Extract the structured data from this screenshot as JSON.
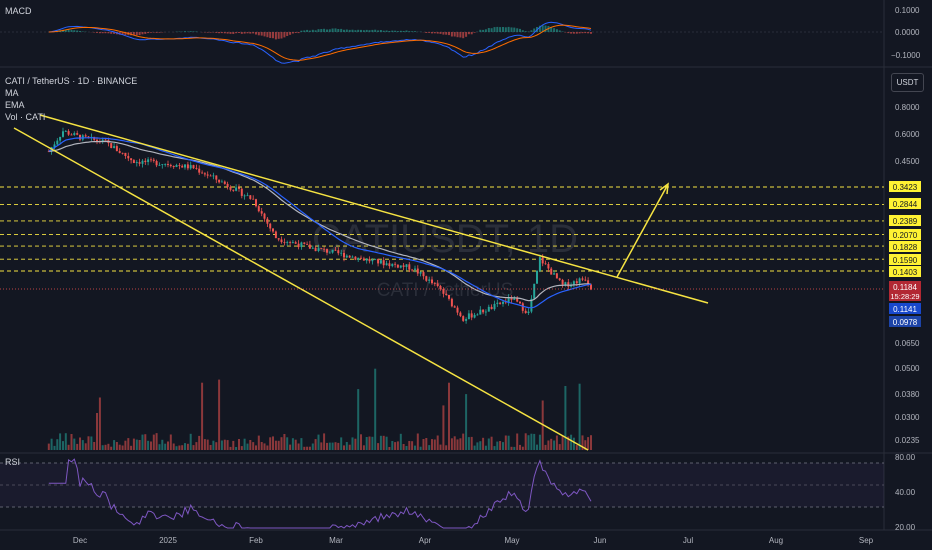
{
  "symbol": {
    "title": "CATI / TetherUS · 1D · BINANCE",
    "watermark_ticker": "CATIUSDT, 1D",
    "watermark_name": "CATI / TetherUS"
  },
  "indicators": {
    "macd_label": "MACD",
    "ma_label": "MA",
    "ema_label": "EMA",
    "vol_label": "Vol · CATI",
    "rsi_label": "RSI"
  },
  "price_axis": {
    "unit": "USDT",
    "ticks": [
      "0.8000",
      "0.6000",
      "0.4500",
      "0.0650",
      "0.0500",
      "0.0380",
      "0.0300",
      "0.0235"
    ]
  },
  "macd_axis": {
    "ticks": [
      "0.1000",
      "0.0000",
      "−0.1000"
    ]
  },
  "rsi_axis": {
    "ticks": [
      "80.00",
      "40.00",
      "20.00"
    ]
  },
  "time_axis": {
    "ticks": [
      "Dec",
      "2025",
      "Feb",
      "Mar",
      "Apr",
      "May",
      "Jun",
      "Jul",
      "Aug",
      "Sep"
    ]
  },
  "badges": {
    "levels": [
      "0.3423",
      "0.2844",
      "0.2389",
      "0.2070",
      "0.1828",
      "0.1590",
      "0.1403"
    ],
    "current_price": "0.1184",
    "countdown": "15:28:29",
    "ema_value": "0.1141",
    "ma_value": "0.0978"
  },
  "colors": {
    "background": "#131722",
    "up": "#26a69a",
    "down": "#ef5350",
    "trendline": "#f5e342",
    "ma": "#2962ff",
    "ema": "#b2b5be",
    "rsi": "#7e57c2",
    "level_badge": "#fff233",
    "price_badge": "#b22833",
    "ema_badge": "#1848cc",
    "ma_badge": "#1d44a8"
  },
  "chart_data": {
    "type": "candlestick",
    "interval": "1D",
    "pair": "CATI/USDT",
    "exchange": "BINANCE",
    "y_scale": "log",
    "x_ticks": [
      "Dec",
      "2025",
      "Feb",
      "Mar",
      "Apr",
      "May",
      "Jun",
      "Jul",
      "Aug",
      "Sep"
    ],
    "resistance_levels": [
      0.3423,
      0.2844,
      0.2389,
      0.207,
      0.1828,
      0.159,
      0.1403
    ],
    "current_price": 0.1184,
    "ema_value": 0.1141,
    "ma_value": 0.0978,
    "price_path": [
      {
        "date": "2024-11-20",
        "price": 0.5
      },
      {
        "date": "2024-11-25",
        "price": 0.62
      },
      {
        "date": "2024-12-01",
        "price": 0.58
      },
      {
        "date": "2024-12-10",
        "price": 0.55
      },
      {
        "date": "2024-12-20",
        "price": 0.45
      },
      {
        "date": "2024-12-31",
        "price": 0.44
      },
      {
        "date": "2025-01-10",
        "price": 0.42
      },
      {
        "date": "2025-01-20",
        "price": 0.36
      },
      {
        "date": "2025-01-31",
        "price": 0.3
      },
      {
        "date": "2025-02-08",
        "price": 0.2
      },
      {
        "date": "2025-02-20",
        "price": 0.18
      },
      {
        "date": "2025-03-01",
        "price": 0.17
      },
      {
        "date": "2025-03-15",
        "price": 0.155
      },
      {
        "date": "2025-03-28",
        "price": 0.145
      },
      {
        "date": "2025-04-07",
        "price": 0.115
      },
      {
        "date": "2025-04-15",
        "price": 0.085
      },
      {
        "date": "2025-04-25",
        "price": 0.095
      },
      {
        "date": "2025-05-02",
        "price": 0.105
      },
      {
        "date": "2025-05-08",
        "price": 0.09
      },
      {
        "date": "2025-05-12",
        "price": 0.16
      },
      {
        "date": "2025-05-20",
        "price": 0.12
      },
      {
        "date": "2025-05-28",
        "price": 0.13
      },
      {
        "date": "2025-05-30",
        "price": 0.1184
      }
    ]
  }
}
